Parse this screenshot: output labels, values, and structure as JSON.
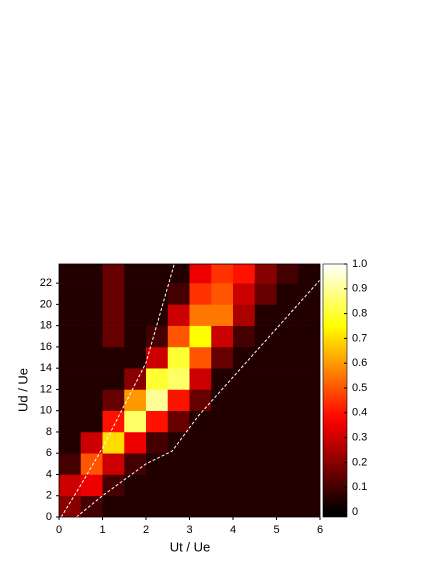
{
  "chart_data": {
    "type": "heatmap",
    "x_label": "Ut / Ue",
    "y_label": "Ud / Ue",
    "x_edges": [
      0,
      0.5,
      1,
      1.5,
      2,
      2.5,
      3,
      3.5,
      4,
      4.5,
      5,
      5.5,
      6
    ],
    "y_edges": [
      0,
      2,
      4,
      6,
      8,
      10,
      12,
      14,
      16,
      18,
      20,
      22,
      24
    ],
    "values": [
      [
        0.2,
        0.1,
        0.05,
        0.05,
        0.05,
        0.05,
        0.05,
        0.05,
        0.05,
        0.05,
        0.05,
        0.05
      ],
      [
        0.3,
        0.35,
        0.1,
        0.05,
        0.05,
        0.05,
        0.05,
        0.05,
        0.05,
        0.05,
        0.05,
        0.05
      ],
      [
        0.1,
        0.5,
        0.3,
        0.1,
        0.05,
        0.05,
        0.05,
        0.05,
        0.05,
        0.05,
        0.05,
        0.05
      ],
      [
        0.05,
        0.3,
        0.7,
        0.35,
        0.1,
        0.05,
        0.05,
        0.05,
        0.05,
        0.05,
        0.05,
        0.05
      ],
      [
        0.05,
        0.05,
        0.4,
        0.85,
        0.4,
        0.15,
        0.05,
        0.05,
        0.05,
        0.05,
        0.05,
        0.05
      ],
      [
        0.05,
        0.05,
        0.15,
        0.6,
        0.9,
        0.4,
        0.15,
        0.05,
        0.05,
        0.05,
        0.05,
        0.05
      ],
      [
        0.05,
        0.05,
        0.05,
        0.2,
        0.8,
        0.85,
        0.3,
        0.05,
        0.05,
        0.05,
        0.05,
        0.05
      ],
      [
        0.05,
        0.05,
        0.05,
        0.05,
        0.3,
        0.8,
        0.5,
        0.15,
        0.05,
        0.05,
        0.05,
        0.05
      ],
      [
        0.05,
        0.05,
        0.15,
        0.05,
        0.1,
        0.5,
        0.75,
        0.3,
        0.1,
        0.05,
        0.05,
        0.05
      ],
      [
        0.05,
        0.05,
        0.15,
        0.05,
        0.05,
        0.3,
        0.55,
        0.55,
        0.25,
        0.05,
        0.05,
        0.05
      ],
      [
        0.05,
        0.05,
        0.15,
        0.05,
        0.05,
        0.1,
        0.45,
        0.5,
        0.3,
        0.15,
        0.05,
        0.05
      ],
      [
        0.05,
        0.05,
        0.15,
        0.05,
        0.05,
        0.05,
        0.35,
        0.45,
        0.4,
        0.2,
        0.1,
        0.05
      ]
    ],
    "colormap": "hot",
    "clim": [
      0,
      1
    ],
    "xlim": [
      0,
      6
    ],
    "ylim": [
      0,
      23.8
    ],
    "xticks": [
      0,
      1,
      2,
      3,
      4,
      5,
      6
    ],
    "yticks": [
      0,
      2,
      4,
      6,
      8,
      10,
      12,
      14,
      16,
      18,
      20,
      22
    ],
    "cticks": [
      0,
      0.1,
      0.2,
      0.3,
      0.4,
      0.5,
      0.6,
      0.7,
      0.8,
      0.9,
      {
        "value": 1,
        "label": "1.0"
      }
    ],
    "lines": [
      {
        "color": "#ffffff",
        "x": [
          0.05,
          0.5,
          1,
          2,
          2.65
        ],
        "y": [
          0,
          3,
          6.5,
          14.5,
          23.8
        ]
      },
      {
        "color": "#ffffff",
        "x": [
          0.4,
          1,
          2,
          2.6,
          3.2,
          6
        ],
        "y": [
          0,
          2,
          5,
          6.2,
          9.5,
          22.3
        ]
      }
    ]
  }
}
